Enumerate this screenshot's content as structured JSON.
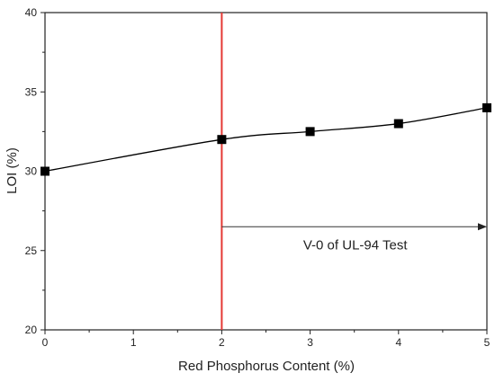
{
  "chart_data": {
    "type": "scatter",
    "xlabel": "Red Phosphorus Content (%)",
    "ylabel": "LOI (%)",
    "xlim": [
      0,
      5
    ],
    "ylim": [
      20,
      40
    ],
    "xticks": [
      "0",
      "1",
      "2",
      "3",
      "4",
      "5"
    ],
    "yticks": [
      "20",
      "25",
      "30",
      "35",
      "40"
    ],
    "grid": false,
    "legend": "none",
    "series": [
      {
        "x": [
          0,
          2,
          3,
          4,
          5
        ],
        "y": [
          30,
          32,
          32.5,
          33,
          34
        ],
        "marker": "square",
        "line": "smooth",
        "color": "#000000"
      }
    ],
    "reference_line": {
      "x": 2,
      "color": "#e53935"
    },
    "annotation": {
      "text": "V-0 of UL-94 Test",
      "arrow_from": [
        2,
        26.5
      ],
      "arrow_to": [
        5,
        26.5
      ]
    }
  }
}
